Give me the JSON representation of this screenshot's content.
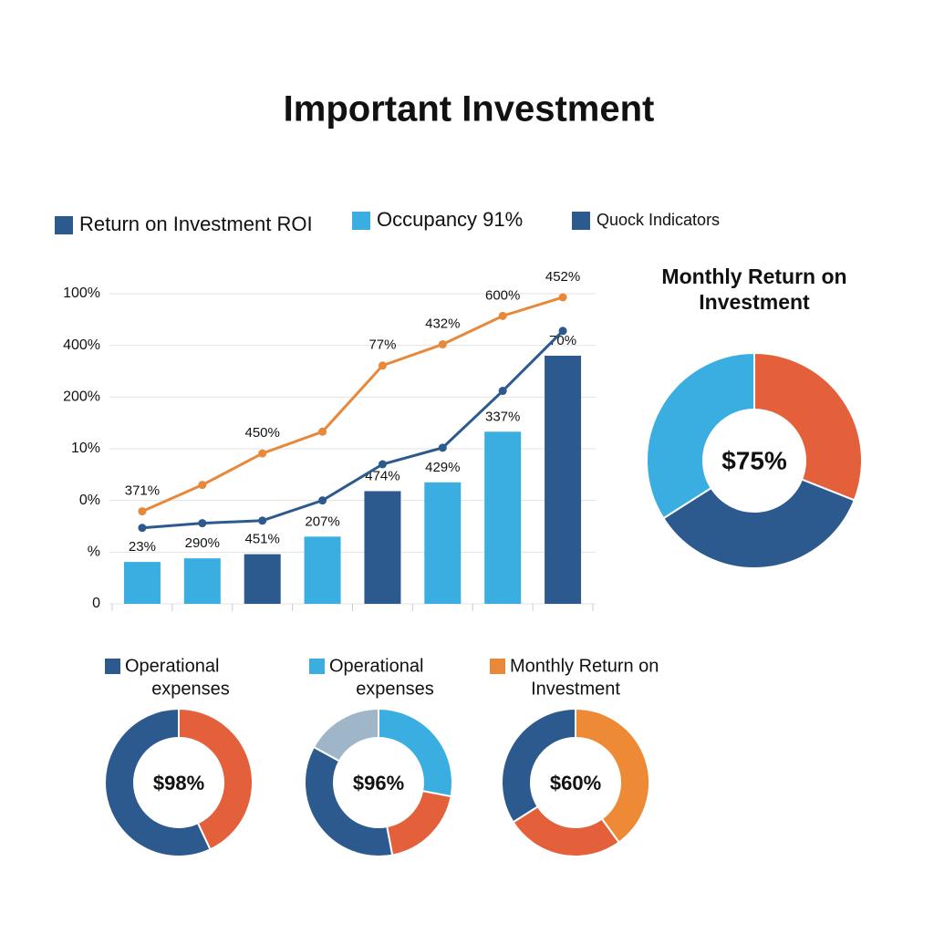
{
  "title": "Important Investment",
  "chart_data": [
    {
      "type": "bar",
      "legend": [
        {
          "label": "Return on Investment ROI",
          "color": "#2d5a8e"
        },
        {
          "label": "Occupancy 91%",
          "color": "#3aaee0"
        },
        {
          "label": "Quock Indicators",
          "color": "#2d5a8e"
        }
      ],
      "categories": [
        null,
        null,
        null,
        null,
        null,
        null,
        null,
        null
      ],
      "values": [
        0.81,
        0.88,
        0.96,
        1.3,
        2.18,
        2.35,
        3.33,
        4.8
      ],
      "value_labels": [
        "23%",
        "290%",
        "451%",
        "207%",
        "474%",
        "429%",
        "337%",
        "70%"
      ],
      "colors": [
        "#3aaee0",
        "#3aaee0",
        "#2d5a8e",
        "#3aaee0",
        "#2d5a8e",
        "#3aaee0",
        "#3aaee0",
        "#2d5a8e"
      ],
      "lines": [
        {
          "color": "#e8883a",
          "values": [
            1.79,
            2.3,
            2.91,
            3.33,
            4.61,
            5.02,
            5.57,
            5.93
          ],
          "value_labels": [
            "371%",
            null,
            "450%",
            null,
            "77%",
            "432%",
            "600%",
            "452%"
          ]
        },
        {
          "color": "#2d5a8e",
          "values": [
            1.47,
            1.56,
            1.61,
            2.0,
            2.7,
            3.02,
            4.12,
            5.28
          ]
        }
      ],
      "ylim": [
        0,
        6
      ],
      "yticks": [
        0,
        {
          "value": 1,
          "label": "%"
        },
        {
          "value": 2,
          "label": "0%"
        },
        {
          "value": 3,
          "label": "10%"
        },
        {
          "value": 4,
          "label": "200%"
        },
        {
          "value": 5,
          "label": "400%"
        },
        {
          "value": 6,
          "label": "100%"
        }
      ],
      "grid": true
    },
    {
      "type": "donut",
      "title": [
        "Monthly Return on",
        "Investment"
      ],
      "center_label": "$75%",
      "values": [
        31,
        35,
        34
      ],
      "colors": [
        "#e4603a",
        "#2d5a8e",
        "#3aaee0"
      ]
    },
    {
      "type": "donut",
      "title": [
        "Operational",
        "expenses"
      ],
      "marker_color": "#2d5a8e",
      "center_label": "$98%",
      "values": [
        43,
        57
      ],
      "colors": [
        "#e4603a",
        "#2d5a8e"
      ]
    },
    {
      "type": "donut",
      "title": [
        "Operational",
        "expenses"
      ],
      "marker_color": "#3aaee0",
      "center_label": "$96%",
      "values": [
        28,
        19,
        36,
        17
      ],
      "colors": [
        "#3aaee0",
        "#e4603a",
        "#2d5a8e",
        "#9fb6c8"
      ]
    },
    {
      "type": "donut",
      "title": [
        "Monthly Return on",
        "Investment"
      ],
      "marker_color": "#e8883a",
      "center_label": "$60%",
      "values": [
        40,
        26,
        34
      ],
      "colors": [
        "#ee8a35",
        "#e4603a",
        "#2d5a8e"
      ]
    }
  ]
}
